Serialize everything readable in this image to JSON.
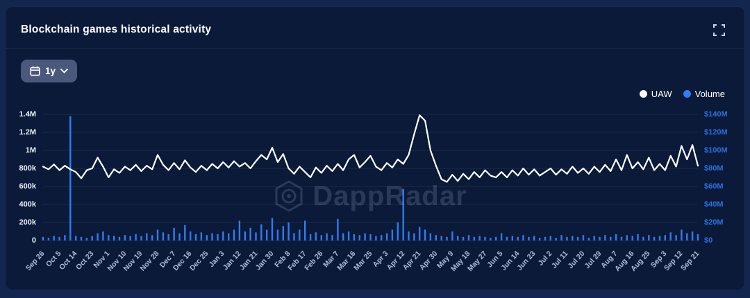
{
  "header": {
    "title": "Blockchain games historical activity"
  },
  "controls": {
    "range_button_label": "1y"
  },
  "legend": {
    "items": [
      {
        "label": "UAW",
        "color": "#ffffff"
      },
      {
        "label": "Volume",
        "color": "#2f7cf6"
      }
    ],
    "position": "top-right"
  },
  "watermark": {
    "text": "DappRadar"
  },
  "chart_data": {
    "type": "line+bar",
    "title": "Blockchain games historical activity",
    "grid": true,
    "legend_position": "top-right",
    "x_tick_labels": [
      "Sep 26",
      "Oct 5",
      "Oct 14",
      "Oct 23",
      "Nov 1",
      "Nov 10",
      "Nov 19",
      "Nov 28",
      "Dec 7",
      "Dec 16",
      "Dec 25",
      "Jan 3",
      "Jan 12",
      "Jan 21",
      "Jan 30",
      "Feb 8",
      "Feb 17",
      "Feb 26",
      "Mar 7",
      "Mar 16",
      "Mar 25",
      "Apr 3",
      "Apr 12",
      "Apr 21",
      "Apr 30",
      "May 9",
      "May 18",
      "May 27",
      "Jun 5",
      "Jun 14",
      "Jun 23",
      "Jul 2",
      "Jul 11",
      "Jul 20",
      "Jul 29",
      "Aug 7",
      "Aug 16",
      "Aug 25",
      "Sep 3",
      "Sep 12",
      "Sep 21"
    ],
    "x_tick_every": 3,
    "y_left": {
      "ticks": [
        "1.4M",
        "1.2M",
        "1M",
        "800k",
        "600k",
        "400k",
        "200k",
        "0"
      ],
      "max": 1400,
      "min": 0,
      "unit": "UAW (thousands)"
    },
    "y_right": {
      "ticks": [
        "$140M",
        "$120M",
        "$100M",
        "$80M",
        "$60M",
        "$40M",
        "$20M",
        "$0"
      ],
      "max": 140,
      "min": 0,
      "unit": "Volume ($M)"
    },
    "series": [
      {
        "name": "UAW",
        "type": "line",
        "axis": "left",
        "color": "#ffffff",
        "unit": "k",
        "values": [
          820,
          790,
          845,
          780,
          830,
          790,
          760,
          690,
          780,
          800,
          920,
          820,
          700,
          790,
          750,
          820,
          780,
          840,
          770,
          830,
          790,
          950,
          840,
          780,
          860,
          790,
          890,
          810,
          760,
          830,
          780,
          850,
          800,
          870,
          810,
          880,
          820,
          860,
          800,
          880,
          950,
          900,
          1030,
          870,
          960,
          800,
          740,
          820,
          760,
          700,
          810,
          750,
          830,
          770,
          850,
          780,
          900,
          950,
          810,
          870,
          940,
          820,
          780,
          860,
          810,
          900,
          850,
          950,
          1180,
          1390,
          1330,
          1000,
          830,
          680,
          650,
          730,
          660,
          740,
          680,
          760,
          700,
          780,
          720,
          700,
          760,
          700,
          780,
          720,
          800,
          730,
          790,
          720,
          760,
          800,
          730,
          790,
          740,
          820,
          750,
          800,
          740,
          820,
          760,
          840,
          770,
          900,
          780,
          950,
          800,
          870,
          790,
          920,
          780,
          850,
          780,
          940,
          820,
          1050,
          900,
          1060,
          830
        ]
      },
      {
        "name": "Volume",
        "type": "bar",
        "axis": "right",
        "color": "#2f7cf6",
        "unit": "$M",
        "values": [
          4,
          3,
          5,
          4,
          6,
          138,
          5,
          4,
          3,
          5,
          8,
          10,
          6,
          5,
          4,
          6,
          5,
          7,
          5,
          8,
          6,
          12,
          9,
          7,
          14,
          8,
          17,
          10,
          7,
          9,
          6,
          8,
          7,
          10,
          8,
          12,
          22,
          10,
          14,
          9,
          18,
          12,
          25,
          12,
          16,
          20,
          8,
          12,
          22,
          7,
          9,
          6,
          8,
          6,
          24,
          8,
          10,
          7,
          6,
          8,
          7,
          5,
          6,
          8,
          12,
          20,
          57,
          10,
          8,
          15,
          12,
          8,
          6,
          5,
          4,
          10,
          5,
          4,
          6,
          4,
          5,
          4,
          3,
          4,
          8,
          4,
          5,
          4,
          6,
          4,
          5,
          3,
          4,
          5,
          3,
          6,
          4,
          5,
          4,
          6,
          3,
          5,
          4,
          6,
          4,
          7,
          4,
          6,
          5,
          7,
          4,
          6,
          4,
          5,
          6,
          9,
          6,
          12,
          8,
          10,
          7
        ]
      }
    ]
  }
}
